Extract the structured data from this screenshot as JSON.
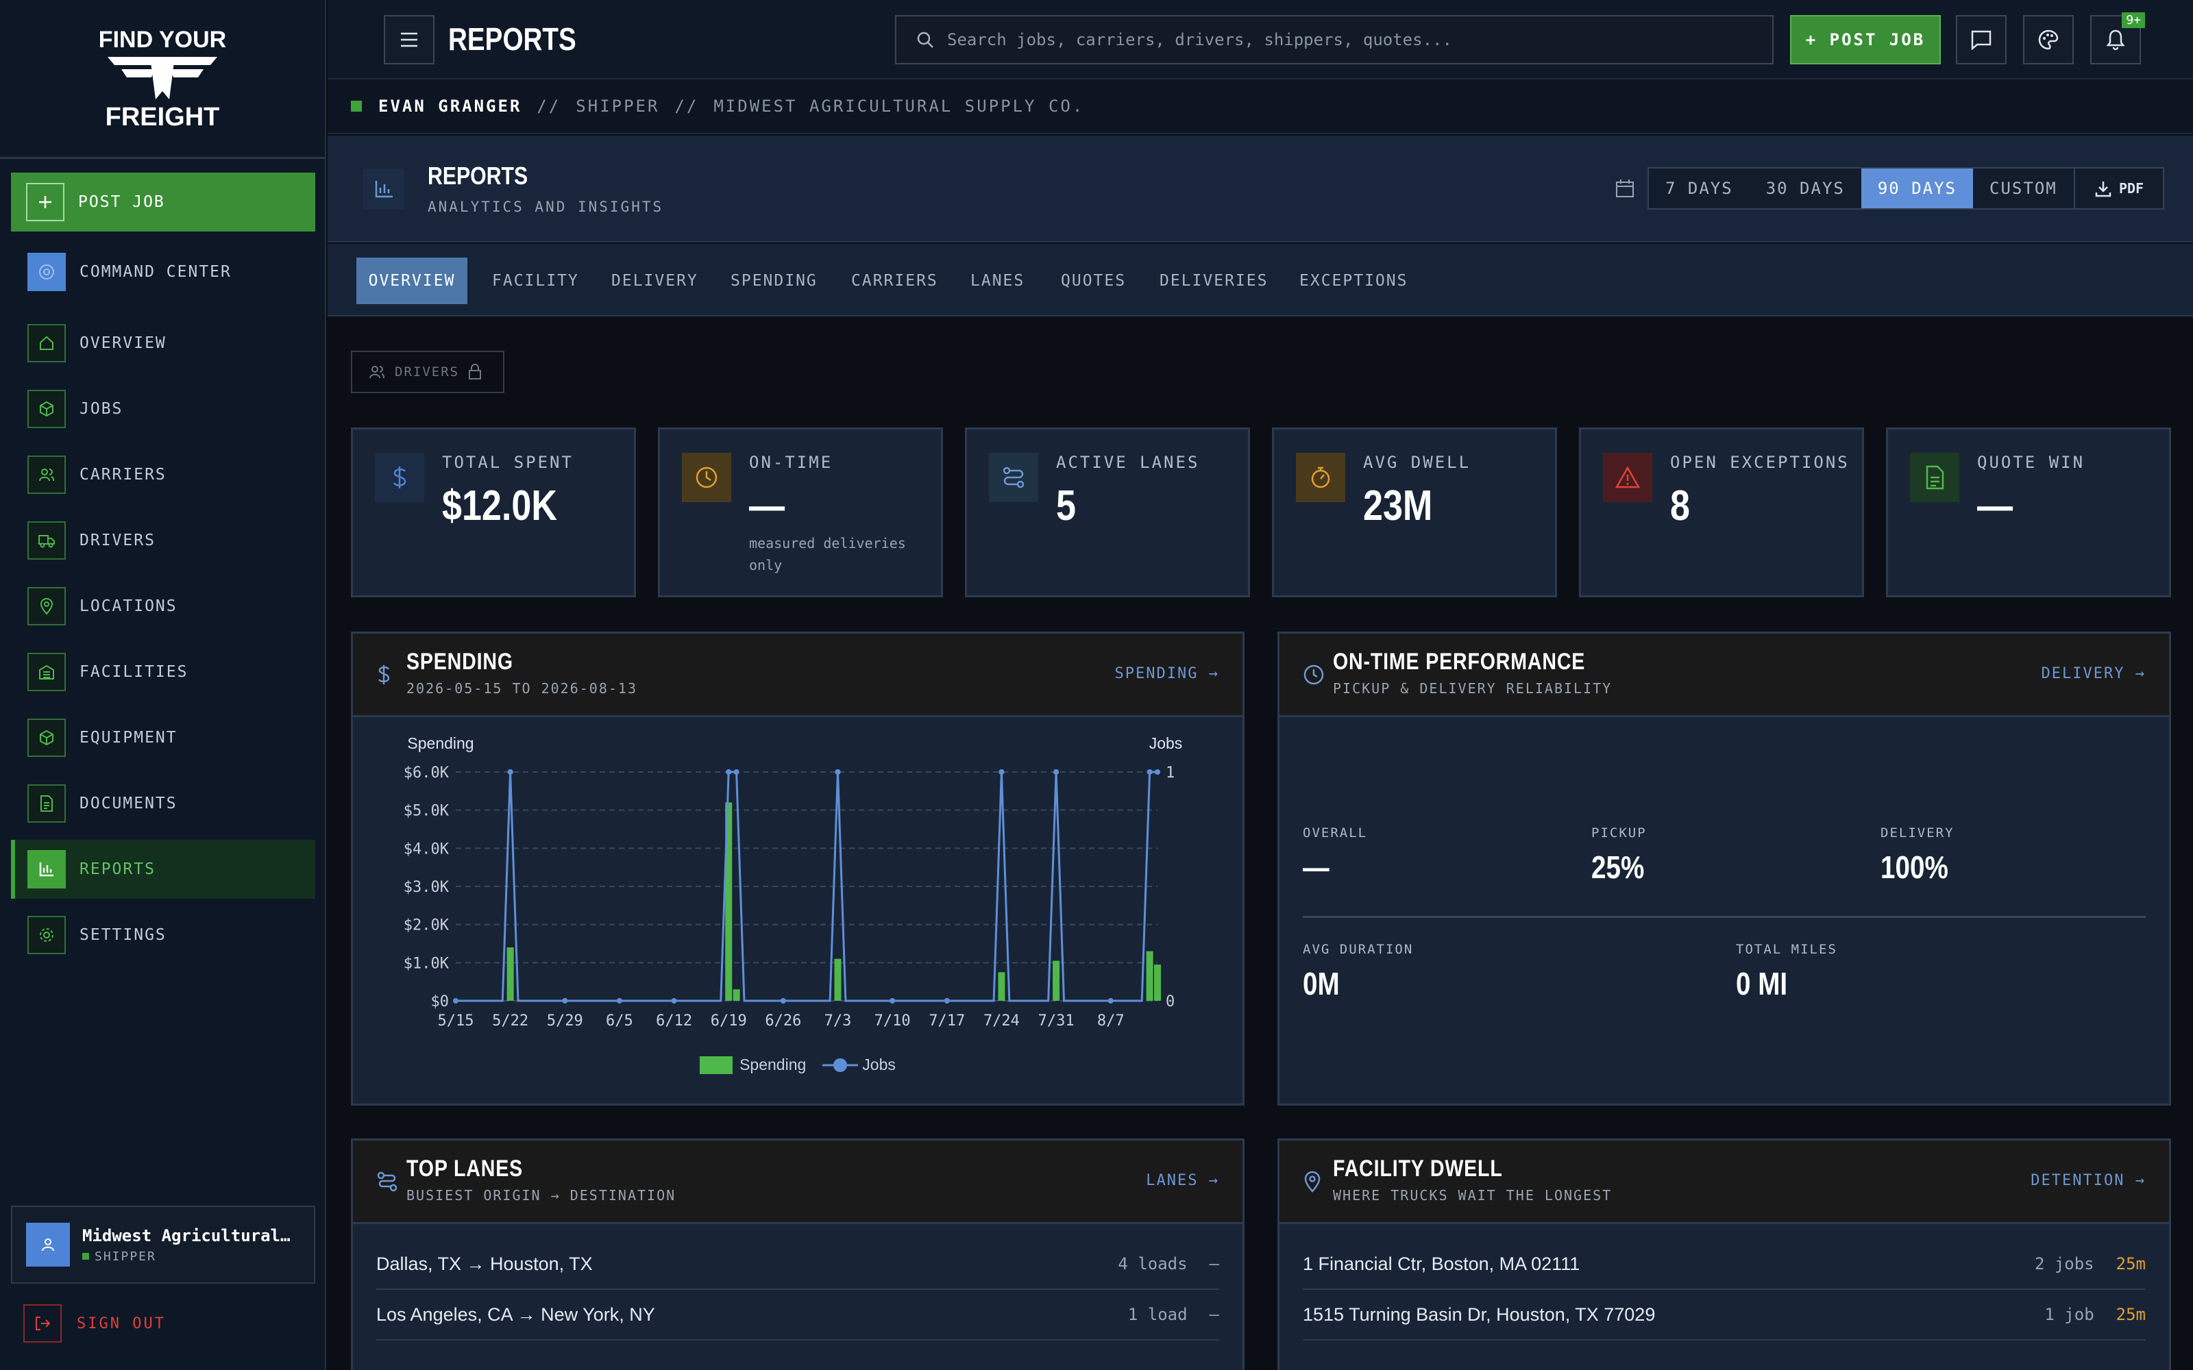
{
  "brand": {
    "line1": "FIND YOUR",
    "line2": "FREIGHT"
  },
  "sidebar": {
    "post_job": "POST JOB",
    "items": [
      {
        "label": "COMMAND CENTER"
      },
      {
        "label": "OVERVIEW"
      },
      {
        "label": "JOBS"
      },
      {
        "label": "CARRIERS"
      },
      {
        "label": "DRIVERS"
      },
      {
        "label": "LOCATIONS"
      },
      {
        "label": "FACILITIES"
      },
      {
        "label": "EQUIPMENT"
      },
      {
        "label": "DOCUMENTS"
      },
      {
        "label": "REPORTS"
      },
      {
        "label": "SETTINGS"
      }
    ],
    "active": "REPORTS",
    "account": {
      "name": "Midwest Agricultural…",
      "role": "SHIPPER"
    },
    "sign_out": "SIGN OUT"
  },
  "topbar": {
    "title": "REPORTS",
    "search_placeholder": "Search jobs, carriers, drivers, shippers, quotes...",
    "post_job": "+ POST JOB",
    "notif_badge": "9+"
  },
  "breadcrumb": {
    "user": "EVAN GRANGER",
    "sep": "//",
    "role": "SHIPPER",
    "company": "MIDWEST AGRICULTURAL SUPPLY CO."
  },
  "header": {
    "title": "REPORTS",
    "subtitle": "ANALYTICS AND INSIGHTS",
    "ranges": [
      "7 DAYS",
      "30 DAYS",
      "90 DAYS",
      "CUSTOM"
    ],
    "selected_range": "90 DAYS",
    "pdf": "PDF"
  },
  "tabs": [
    "OVERVIEW",
    "FACILITY",
    "DELIVERY",
    "SPENDING",
    "CARRIERS",
    "LANES",
    "QUOTES",
    "DELIVERIES",
    "EXCEPTIONS"
  ],
  "selected_tab": "OVERVIEW",
  "drivers_chip": "DRIVERS",
  "kpis": [
    {
      "label": "TOTAL SPENT",
      "value": "$12.0K",
      "sub": "",
      "color": "#4d84d6"
    },
    {
      "label": "ON-TIME",
      "value": "—",
      "sub": "measured deliveries only",
      "color": "#e0a030"
    },
    {
      "label": "ACTIVE LANES",
      "value": "5",
      "sub": "",
      "color": "#6d97d4"
    },
    {
      "label": "AVG DWELL",
      "value": "23M",
      "sub": "",
      "color": "#e0a030"
    },
    {
      "label": "OPEN EXCEPTIONS",
      "value": "8",
      "sub": "",
      "color": "#e0403a"
    },
    {
      "label": "QUOTE WIN",
      "value": "—",
      "sub": "",
      "color": "#4fb84a"
    }
  ],
  "spending_panel": {
    "title": "SPENDING",
    "subtitle": "2026-05-15 TO 2026-08-13",
    "link": "SPENDING →",
    "left_axis_label": "Spending",
    "right_axis_label": "Jobs",
    "legend": [
      "Spending",
      "Jobs"
    ]
  },
  "chart_data": {
    "type": "bar",
    "x_tick_labels": [
      "5/15",
      "5/22",
      "5/29",
      "6/5",
      "6/12",
      "6/19",
      "6/26",
      "7/3",
      "7/10",
      "7/17",
      "7/24",
      "7/31",
      "8/7"
    ],
    "y_left": {
      "label": "Spending",
      "ticks": [
        "$0",
        "$1.0K",
        "$2.0K",
        "$3.0K",
        "$4.0K",
        "$5.0K",
        "$6.0K"
      ],
      "range": [
        0,
        6000
      ]
    },
    "y_right": {
      "label": "Jobs",
      "ticks": [
        "0",
        "1"
      ],
      "range": [
        0,
        1
      ]
    },
    "grid": true,
    "legend_position": "bottom",
    "series": [
      {
        "name": "Spending",
        "kind": "bar",
        "color": "#4fb84a",
        "points": [
          {
            "x": "5/22",
            "y": 1400
          },
          {
            "x": "6/19",
            "y": 5200
          },
          {
            "x": "6/20",
            "y": 300
          },
          {
            "x": "7/3",
            "y": 1100
          },
          {
            "x": "7/24",
            "y": 750
          },
          {
            "x": "7/31",
            "y": 1050
          },
          {
            "x": "8/12",
            "y": 1300
          },
          {
            "x": "8/13",
            "y": 950
          }
        ]
      },
      {
        "name": "Jobs",
        "kind": "line",
        "color": "#5f8fd8",
        "points": [
          {
            "x": "5/22",
            "y": 1
          },
          {
            "x": "6/19",
            "y": 1
          },
          {
            "x": "6/20",
            "y": 1
          },
          {
            "x": "7/3",
            "y": 1
          },
          {
            "x": "7/24",
            "y": 1
          },
          {
            "x": "7/31",
            "y": 1
          },
          {
            "x": "8/12",
            "y": 1
          },
          {
            "x": "8/13",
            "y": 1
          }
        ]
      }
    ]
  },
  "ontime_panel": {
    "title": "ON-TIME PERFORMANCE",
    "subtitle": "PICKUP & DELIVERY RELIABILITY",
    "link": "DELIVERY →",
    "stats": [
      {
        "label": "OVERALL",
        "value": "—"
      },
      {
        "label": "PICKUP",
        "value": "25%"
      },
      {
        "label": "DELIVERY",
        "value": "100%"
      }
    ],
    "stats2": [
      {
        "label": "AVG DURATION",
        "value": "0M"
      },
      {
        "label": "TOTAL MILES",
        "value": "0 MI"
      }
    ]
  },
  "lanes_panel": {
    "title": "TOP LANES",
    "subtitle": "BUSIEST ORIGIN → DESTINATION",
    "link": "LANES →",
    "rows": [
      {
        "lane": "Dallas, TX → Houston, TX",
        "count": "4 loads",
        "end": "—"
      },
      {
        "lane": "Los Angeles, CA → New York, NY",
        "count": "1 load",
        "end": "—"
      }
    ]
  },
  "dwell_panel": {
    "title": "FACILITY DWELL",
    "subtitle": "WHERE TRUCKS WAIT THE LONGEST",
    "link": "DETENTION →",
    "rows": [
      {
        "address": "1 Financial Ctr, Boston, MA 02111",
        "count": "2 jobs",
        "time": "25m"
      },
      {
        "address": "1515 Turning Basin Dr, Houston, TX 77029",
        "count": "1 job",
        "time": "25m"
      }
    ]
  }
}
